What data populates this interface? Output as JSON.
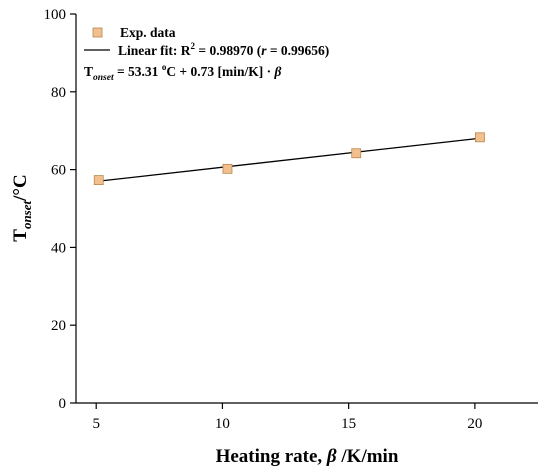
{
  "chart_data": {
    "type": "scatter",
    "title": "",
    "xlabel": "Heating rate, ",
    "xlabel_symbol": "β",
    "xlabel_unit": " /K/min",
    "ylabel_main": "T",
    "ylabel_sub": "onset",
    "ylabel_unit": "/°C",
    "xlim": [
      4.2,
      22.5
    ],
    "ylim": [
      0,
      100
    ],
    "xticks": [
      5,
      10,
      15,
      20
    ],
    "yticks": [
      0,
      20,
      40,
      60,
      80,
      100
    ],
    "grid": false,
    "legend_position": "top-left",
    "series": [
      {
        "name": "Exp. data",
        "kind": "points",
        "marker": "square",
        "color": "#f2c08e",
        "edge_color": "#b8864e",
        "x": [
          5.1,
          10.2,
          15.3,
          20.2
        ],
        "y": [
          57.3,
          60.2,
          64.2,
          68.3
        ]
      },
      {
        "kind": "line",
        "color": "#000000",
        "x": [
          5.1,
          20.2
        ],
        "y": [
          57.03,
          68.06
        ]
      }
    ],
    "legend": {
      "points_label": "Exp. data",
      "fit_prefix": "Linear fit: R",
      "fit_sup": "2",
      "fit_r2": " = 0.98970 (",
      "fit_r": "r",
      "fit_rval": " = 0.99656)",
      "eq_T": "T",
      "eq_sub": "onset",
      "eq_mid": " = 53.31 ",
      "eq_deg": "o",
      "eq_rest": "C + 0.73 [min/K] · ",
      "eq_beta": "β"
    }
  }
}
